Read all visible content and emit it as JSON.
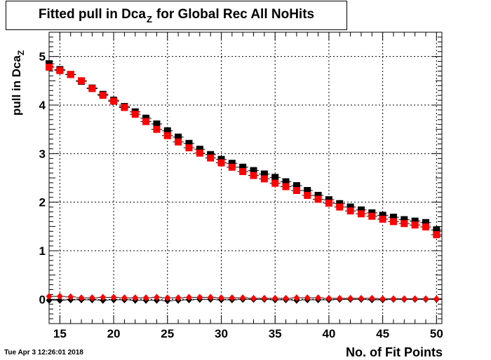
{
  "header": {
    "title_prefix": "Fitted pull in Dca",
    "title_sub": "Z",
    "title_suffix": "for Global Rec All NoHits"
  },
  "footer": {
    "timestamp": "Tue Apr  3 12:26:01 2018"
  },
  "chart_data": {
    "type": "scatter",
    "xlabel": "No. of Fit Points",
    "ylabel_prefix": "pull in Dca",
    "ylabel_sub": "Z",
    "xlim": [
      14,
      50.5
    ],
    "ylim": [
      -0.5,
      5.5
    ],
    "x_ticks": [
      15,
      20,
      25,
      30,
      35,
      40,
      45,
      50
    ],
    "y_ticks": [
      0,
      1,
      2,
      3,
      4,
      5
    ],
    "grid": true,
    "x": [
      14,
      15,
      16,
      17,
      18,
      19,
      20,
      21,
      22,
      23,
      24,
      25,
      26,
      27,
      28,
      29,
      30,
      31,
      32,
      33,
      34,
      35,
      36,
      37,
      38,
      39,
      40,
      41,
      42,
      43,
      44,
      45,
      46,
      47,
      48,
      49,
      50
    ],
    "series": [
      {
        "marker": "square",
        "color": "#000000",
        "values": [
          4.85,
          4.73,
          4.63,
          4.49,
          4.35,
          4.22,
          4.1,
          3.97,
          3.86,
          3.73,
          3.61,
          3.47,
          3.34,
          3.21,
          3.09,
          2.98,
          2.88,
          2.8,
          2.72,
          2.65,
          2.58,
          2.51,
          2.42,
          2.34,
          2.24,
          2.14,
          2.05,
          1.97,
          1.9,
          1.84,
          1.78,
          1.73,
          1.69,
          1.64,
          1.61,
          1.58,
          1.43
        ]
      },
      {
        "marker": "square",
        "color": "#ff0000",
        "values": [
          4.78,
          4.71,
          4.63,
          4.5,
          4.34,
          4.2,
          4.08,
          3.95,
          3.81,
          3.66,
          3.5,
          3.37,
          3.24,
          3.12,
          3.01,
          2.91,
          2.81,
          2.72,
          2.63,
          2.55,
          2.48,
          2.39,
          2.32,
          2.24,
          2.14,
          2.06,
          1.98,
          1.9,
          1.82,
          1.76,
          1.71,
          1.65,
          1.6,
          1.56,
          1.53,
          1.49,
          1.33
        ]
      },
      {
        "marker": "diamond",
        "color": "#000000",
        "values": [
          -0.02,
          -0.02,
          -0.01,
          -0.01,
          -0.01,
          -0.02,
          -0.01,
          -0.01,
          -0.02,
          -0.02,
          -0.02,
          -0.03,
          -0.02,
          -0.01,
          0.0,
          0.0,
          -0.01,
          -0.01,
          0.0,
          0.0,
          0.0,
          -0.01,
          -0.01,
          -0.02,
          -0.01,
          -0.01,
          -0.01,
          0.0,
          0.0,
          0.0,
          -0.01,
          -0.01,
          0.0,
          0.0,
          0.0,
          0.0,
          0.0
        ]
      },
      {
        "marker": "diamond",
        "color": "#ff0000",
        "values": [
          0.06,
          0.06,
          0.05,
          0.03,
          0.03,
          0.04,
          0.04,
          0.03,
          0.03,
          0.03,
          0.04,
          0.03,
          0.03,
          0.04,
          0.04,
          0.04,
          0.03,
          0.03,
          0.03,
          0.02,
          0.02,
          0.02,
          0.02,
          0.03,
          0.03,
          0.03,
          0.02,
          0.02,
          0.02,
          0.02,
          0.02,
          0.01,
          0.01,
          0.01,
          0.01,
          0.01,
          0.01
        ]
      }
    ]
  }
}
